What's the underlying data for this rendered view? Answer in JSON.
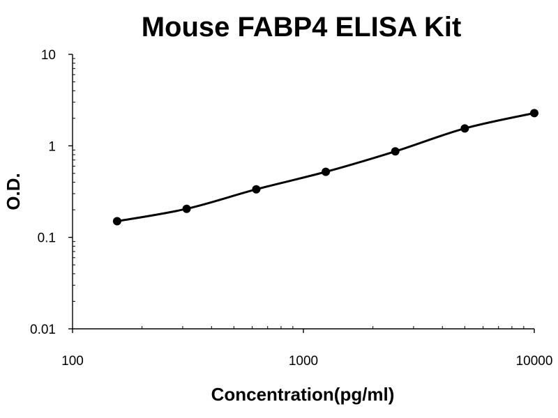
{
  "chart_data": {
    "type": "scatter",
    "title": "Mouse FABP4 ELISA Kit",
    "xlabel": "Concentration(pg/ml)",
    "ylabel": "O.D.",
    "xscale": "log",
    "yscale": "log",
    "xlim": [
      100,
      10000
    ],
    "ylim": [
      0.01,
      10
    ],
    "x_ticks": [
      {
        "value": 100,
        "label": "100"
      },
      {
        "value": 1000,
        "label": "1000"
      },
      {
        "value": 10000,
        "label": "10000"
      }
    ],
    "y_ticks": [
      {
        "value": 0.01,
        "label": "0.01"
      },
      {
        "value": 0.1,
        "label": "0.1"
      },
      {
        "value": 1,
        "label": "1"
      },
      {
        "value": 10,
        "label": "10"
      }
    ],
    "grid": false,
    "legend": "none",
    "series": [
      {
        "points": [
          {
            "x": 156,
            "y": 0.15
          },
          {
            "x": 312,
            "y": 0.205
          },
          {
            "x": 625,
            "y": 0.335
          },
          {
            "x": 1250,
            "y": 0.52
          },
          {
            "x": 2500,
            "y": 0.87
          },
          {
            "x": 5000,
            "y": 1.55
          },
          {
            "x": 10000,
            "y": 2.28
          }
        ],
        "fit_curve": "smooth",
        "marker": "circle",
        "color": "#000000"
      }
    ]
  }
}
